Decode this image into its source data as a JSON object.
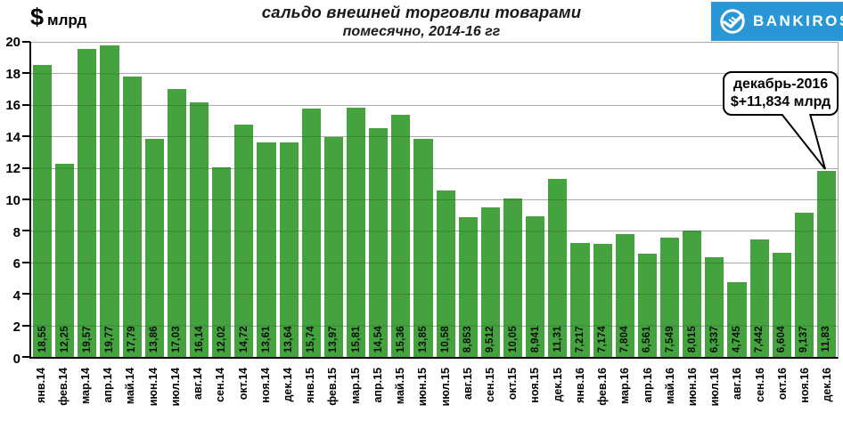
{
  "header": {
    "y_unit_symbol": "$",
    "y_unit_text": "млрд"
  },
  "logo": {
    "text": "BANKIROS"
  },
  "colors": {
    "bar": "#44A23F",
    "logo_blue": "#2997D6",
    "grid": "#ABABAB",
    "axis": "#000000"
  },
  "chart_data": {
    "type": "bar",
    "title": "сальдо внешней торговли товарами",
    "subtitle": "помесячно,  2014-16 гг",
    "ylabel": "$ млрд",
    "xlabel": "",
    "ylim": [
      0,
      20
    ],
    "ytick_step": 2,
    "yticks": [
      0,
      2,
      4,
      6,
      8,
      10,
      12,
      14,
      16,
      18,
      20
    ],
    "grid": true,
    "legend": false,
    "categories": [
      "янв.14",
      "фев.14",
      "мар.14",
      "апр.14",
      "май.14",
      "июн.14",
      "июл.14",
      "авг.14",
      "сен.14",
      "окт.14",
      "ноя.14",
      "дек.14",
      "янв.15",
      "фев.15",
      "мар.15",
      "апр.15",
      "май.15",
      "июн.15",
      "июл.15",
      "авг.15",
      "сен.15",
      "окт.15",
      "ноя.15",
      "дек.15",
      "янв.16",
      "фев.16",
      "мар.16",
      "апр.16",
      "май.16",
      "июн.16",
      "июл.16",
      "авг.16",
      "сен.16",
      "окт.16",
      "ноя.16",
      "дек.16"
    ],
    "values": [
      18.55,
      12.25,
      19.57,
      19.77,
      17.79,
      13.86,
      17.03,
      16.14,
      12.02,
      14.72,
      13.61,
      13.64,
      15.74,
      13.97,
      15.81,
      14.54,
      15.36,
      13.85,
      10.58,
      8.853,
      9.512,
      10.05,
      8.941,
      11.31,
      7.217,
      7.174,
      7.804,
      6.561,
      7.549,
      8.015,
      6.337,
      4.745,
      7.442,
      6.604,
      9.137,
      11.83
    ],
    "value_labels": [
      "18,55",
      "12,25",
      "19,57",
      "19,77",
      "17,79",
      "13,86",
      "17,03",
      "16,14",
      "12,02",
      "14,72",
      "13,61",
      "13,64",
      "15,74",
      "13,97",
      "15,81",
      "14,54",
      "15,36",
      "13,85",
      "10,58",
      "8,853",
      "9,512",
      "10,05",
      "8,941",
      "11,31",
      "7,217",
      "7,174",
      "7,804",
      "6,561",
      "7,549",
      "8,015",
      "6,337",
      "4,745",
      "7,442",
      "6,604",
      "9,137",
      "11,83"
    ],
    "annotation": {
      "target_category": "дек.16",
      "line1": "декабрь-2016",
      "line2": "$+11,834 млрд"
    }
  }
}
